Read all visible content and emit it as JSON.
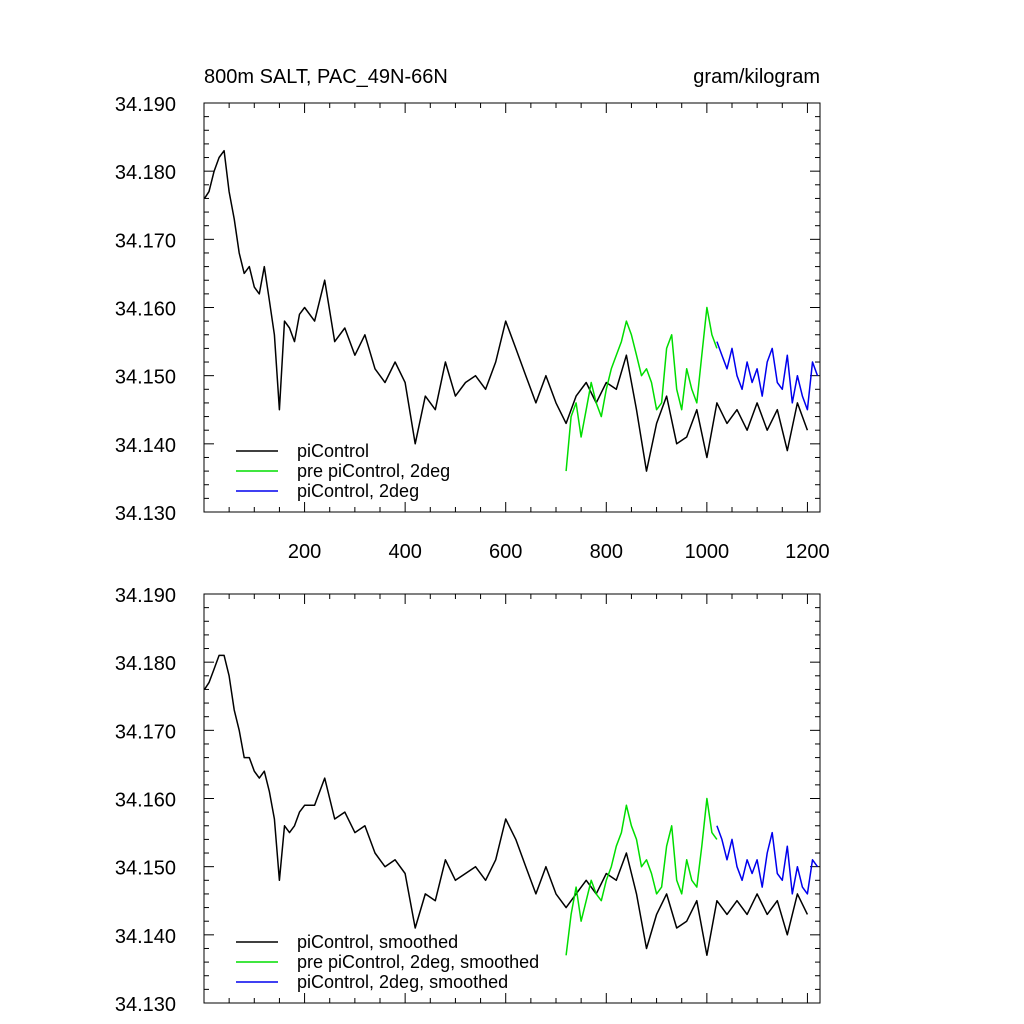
{
  "header": {
    "title": "800m SALT, PAC_49N-66N",
    "units": "gram/kilogram"
  },
  "colors": {
    "black": "#000000",
    "green": "#00dd00",
    "blue": "#0000ee"
  },
  "chart_data": [
    {
      "type": "line",
      "xlim": [
        0,
        1225
      ],
      "ylim": [
        34.13,
        34.19
      ],
      "yticks": [
        "34.130",
        "34.140",
        "34.150",
        "34.160",
        "34.170",
        "34.180",
        "34.190"
      ],
      "xticks": [
        "200",
        "400",
        "600",
        "800",
        "1000",
        "1200"
      ],
      "legend_position": "bottom-left",
      "series": [
        {
          "name": "piControl",
          "color": "#000000",
          "x": [
            1,
            10,
            20,
            30,
            40,
            50,
            60,
            70,
            80,
            90,
            100,
            110,
            120,
            130,
            140,
            150,
            160,
            170,
            180,
            190,
            200,
            220,
            240,
            260,
            280,
            300,
            320,
            340,
            360,
            380,
            400,
            420,
            440,
            460,
            480,
            500,
            520,
            540,
            560,
            580,
            600,
            620,
            640,
            660,
            680,
            700,
            720,
            740,
            760,
            780,
            800,
            820,
            840,
            860,
            880,
            900,
            920,
            940,
            960,
            980,
            1000,
            1020,
            1040,
            1060,
            1080,
            1100,
            1120,
            1140,
            1160,
            1180,
            1200
          ],
          "y": [
            34.176,
            34.177,
            34.18,
            34.182,
            34.183,
            34.177,
            34.173,
            34.168,
            34.165,
            34.166,
            34.163,
            34.162,
            34.166,
            34.161,
            34.156,
            34.145,
            34.158,
            34.157,
            34.155,
            34.159,
            34.16,
            34.158,
            34.164,
            34.155,
            34.157,
            34.153,
            34.156,
            34.151,
            34.149,
            34.152,
            34.149,
            34.14,
            34.147,
            34.145,
            34.152,
            34.147,
            34.149,
            34.15,
            34.148,
            34.152,
            34.158,
            34.154,
            34.15,
            34.146,
            34.15,
            34.146,
            34.143,
            34.147,
            34.149,
            34.146,
            34.149,
            34.148,
            34.153,
            34.145,
            34.136,
            34.143,
            34.147,
            34.14,
            34.141,
            34.145,
            34.138,
            34.146,
            34.143,
            34.145,
            34.142,
            34.146,
            34.142,
            34.145,
            34.139,
            34.146,
            34.142
          ]
        },
        {
          "name": "pre piControl, 2deg",
          "color": "#00dd00",
          "x": [
            720,
            730,
            740,
            750,
            760,
            770,
            780,
            790,
            800,
            810,
            820,
            830,
            840,
            850,
            860,
            870,
            880,
            890,
            900,
            910,
            920,
            930,
            940,
            950,
            960,
            970,
            980,
            990,
            1000,
            1010,
            1020
          ],
          "y": [
            34.136,
            34.144,
            34.146,
            34.141,
            34.145,
            34.149,
            34.146,
            34.144,
            34.148,
            34.151,
            34.153,
            34.155,
            34.158,
            34.156,
            34.153,
            34.15,
            34.151,
            34.149,
            34.145,
            34.146,
            34.154,
            34.156,
            34.148,
            34.145,
            34.151,
            34.148,
            34.146,
            34.153,
            34.16,
            34.156,
            34.154
          ]
        },
        {
          "name": "piControl, 2deg",
          "color": "#0000ee",
          "x": [
            1020,
            1030,
            1040,
            1050,
            1060,
            1070,
            1080,
            1090,
            1100,
            1110,
            1120,
            1130,
            1140,
            1150,
            1160,
            1170,
            1180,
            1190,
            1200,
            1210,
            1220
          ],
          "y": [
            34.155,
            34.153,
            34.151,
            34.154,
            34.15,
            34.148,
            34.152,
            34.149,
            34.151,
            34.147,
            34.152,
            34.154,
            34.149,
            34.148,
            34.153,
            34.146,
            34.15,
            34.147,
            34.145,
            34.152,
            34.15
          ]
        }
      ]
    },
    {
      "type": "line",
      "xlim": [
        0,
        1225
      ],
      "ylim": [
        34.13,
        34.19
      ],
      "yticks": [
        "34.130",
        "34.140",
        "34.150",
        "34.160",
        "34.170",
        "34.180",
        "34.190"
      ],
      "legend_position": "bottom-left",
      "series": [
        {
          "name": "piControl, smoothed",
          "color": "#000000",
          "x": [
            1,
            10,
            20,
            30,
            40,
            50,
            60,
            70,
            80,
            90,
            100,
            110,
            120,
            130,
            140,
            150,
            160,
            170,
            180,
            190,
            200,
            220,
            240,
            260,
            280,
            300,
            320,
            340,
            360,
            380,
            400,
            420,
            440,
            460,
            480,
            500,
            520,
            540,
            560,
            580,
            600,
            620,
            640,
            660,
            680,
            700,
            720,
            740,
            760,
            780,
            800,
            820,
            840,
            860,
            880,
            900,
            920,
            940,
            960,
            980,
            1000,
            1020,
            1040,
            1060,
            1080,
            1100,
            1120,
            1140,
            1160,
            1180,
            1200
          ],
          "y": [
            34.176,
            34.177,
            34.179,
            34.181,
            34.181,
            34.178,
            34.173,
            34.17,
            34.166,
            34.166,
            34.164,
            34.163,
            34.164,
            34.161,
            34.157,
            34.148,
            34.156,
            34.155,
            34.156,
            34.158,
            34.159,
            34.159,
            34.163,
            34.157,
            34.158,
            34.155,
            34.156,
            34.152,
            34.15,
            34.151,
            34.149,
            34.141,
            34.146,
            34.145,
            34.151,
            34.148,
            34.149,
            34.15,
            34.148,
            34.151,
            34.157,
            34.154,
            34.15,
            34.146,
            34.15,
            34.146,
            34.144,
            34.146,
            34.148,
            34.146,
            34.149,
            34.148,
            34.152,
            34.146,
            34.138,
            34.143,
            34.146,
            34.141,
            34.142,
            34.145,
            34.137,
            34.145,
            34.143,
            34.145,
            34.143,
            34.146,
            34.143,
            34.145,
            34.14,
            34.146,
            34.143
          ]
        },
        {
          "name": "pre piControl, 2deg, smoothed",
          "color": "#00dd00",
          "x": [
            720,
            730,
            740,
            750,
            760,
            770,
            780,
            790,
            800,
            810,
            820,
            830,
            840,
            850,
            860,
            870,
            880,
            890,
            900,
            910,
            920,
            930,
            940,
            950,
            960,
            970,
            980,
            990,
            1000,
            1010,
            1020
          ],
          "y": [
            34.137,
            34.143,
            34.147,
            34.142,
            34.145,
            34.148,
            34.146,
            34.145,
            34.148,
            34.15,
            34.153,
            34.155,
            34.159,
            34.156,
            34.154,
            34.15,
            34.151,
            34.149,
            34.146,
            34.147,
            34.153,
            34.156,
            34.148,
            34.146,
            34.151,
            34.148,
            34.147,
            34.153,
            34.16,
            34.155,
            34.154
          ]
        },
        {
          "name": "piControl, 2deg, smoothed",
          "color": "#0000ee",
          "x": [
            1020,
            1030,
            1040,
            1050,
            1060,
            1070,
            1080,
            1090,
            1100,
            1110,
            1120,
            1130,
            1140,
            1150,
            1160,
            1170,
            1180,
            1190,
            1200,
            1210,
            1220
          ],
          "y": [
            34.156,
            34.154,
            34.151,
            34.154,
            34.15,
            34.148,
            34.151,
            34.149,
            34.151,
            34.147,
            34.152,
            34.155,
            34.149,
            34.148,
            34.153,
            34.146,
            34.15,
            34.147,
            34.146,
            34.151,
            34.15
          ]
        }
      ]
    }
  ]
}
